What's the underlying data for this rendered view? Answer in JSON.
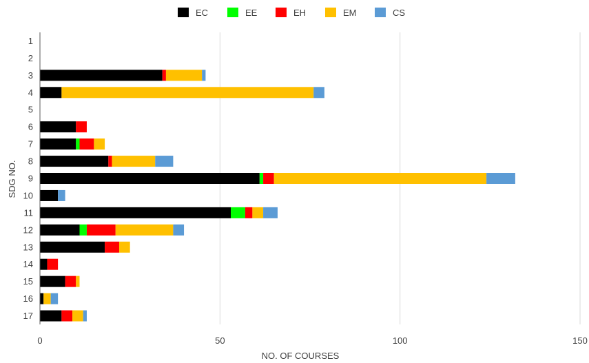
{
  "chart_data": {
    "type": "bar",
    "orientation": "horizontal",
    "stacked": true,
    "title": "",
    "xlabel": "NO. OF COURSES",
    "ylabel": "SDG NO.",
    "xlim": [
      0,
      150
    ],
    "xticks": [
      0,
      50,
      100,
      150
    ],
    "grid": true,
    "legend_position": "top",
    "categories": [
      "1",
      "2",
      "3",
      "4",
      "5",
      "6",
      "7",
      "8",
      "9",
      "10",
      "11",
      "12",
      "13",
      "14",
      "15",
      "16",
      "17"
    ],
    "series": [
      {
        "name": "EC",
        "color": "#000000",
        "values": [
          0,
          0,
          34,
          6,
          0,
          10,
          10,
          19,
          61,
          5,
          53,
          11,
          18,
          2,
          7,
          1,
          6
        ]
      },
      {
        "name": "EE",
        "color": "#00ff00",
        "values": [
          0,
          0,
          0,
          0,
          0,
          0,
          1,
          0,
          1,
          0,
          4,
          2,
          0,
          0,
          0,
          0,
          0
        ]
      },
      {
        "name": "EH",
        "color": "#ff0000",
        "values": [
          0,
          0,
          1,
          0,
          0,
          3,
          4,
          1,
          3,
          0,
          2,
          8,
          4,
          3,
          3,
          0,
          3
        ]
      },
      {
        "name": "EM",
        "color": "#ffc000",
        "values": [
          0,
          0,
          10,
          70,
          0,
          0,
          3,
          12,
          59,
          0,
          3,
          16,
          3,
          0,
          1,
          2,
          3
        ]
      },
      {
        "name": "CS",
        "color": "#5b9bd5",
        "values": [
          0,
          0,
          1,
          3,
          0,
          0,
          0,
          5,
          8,
          2,
          4,
          3,
          0,
          0,
          0,
          2,
          1
        ]
      }
    ]
  }
}
